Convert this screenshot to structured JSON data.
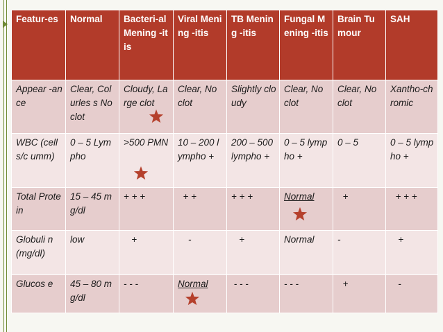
{
  "table": {
    "headers": [
      "Featur-es",
      "Normal",
      "Bacteri-al Mening -itis",
      "Viral Mening -itis",
      "TB Mening -itis",
      "Fungal Mening -itis",
      "Brain Tumour",
      "SAH"
    ],
    "rows": [
      [
        "Appear -ance",
        "Clear, Colurles s No clot",
        "Cloudy, Large clot",
        "Clear, No clot",
        "Slightly cloudy",
        "Clear, No clot",
        "Clear, No clot",
        "Xantho-chromic"
      ],
      [
        "WBC (cells/c umm)",
        "0 – 5 Lympho",
        ">500 PMN",
        "10 – 200 lympho +",
        "200 – 500 lympho +",
        "0 – 5 lympho +",
        "0 – 5",
        "0 – 5 lympho +"
      ],
      [
        "Total Protein",
        "15 – 45 mg/dl",
        "+ + +",
        "  + +",
        "+ + +",
        "Normal",
        "  +",
        "  + + +"
      ],
      [
        "Globuli n (mg/dl)",
        "low",
        "   +",
        "    -",
        "   +",
        "Normal",
        "-",
        "   +"
      ],
      [
        "Glucos e",
        "45 – 80 mg/dl",
        "- - -",
        "Normal",
        " - - -",
        "- - -",
        "  +",
        "   -"
      ]
    ]
  },
  "marker_color": "#b5402c",
  "accent_color": "#b23b2a"
}
